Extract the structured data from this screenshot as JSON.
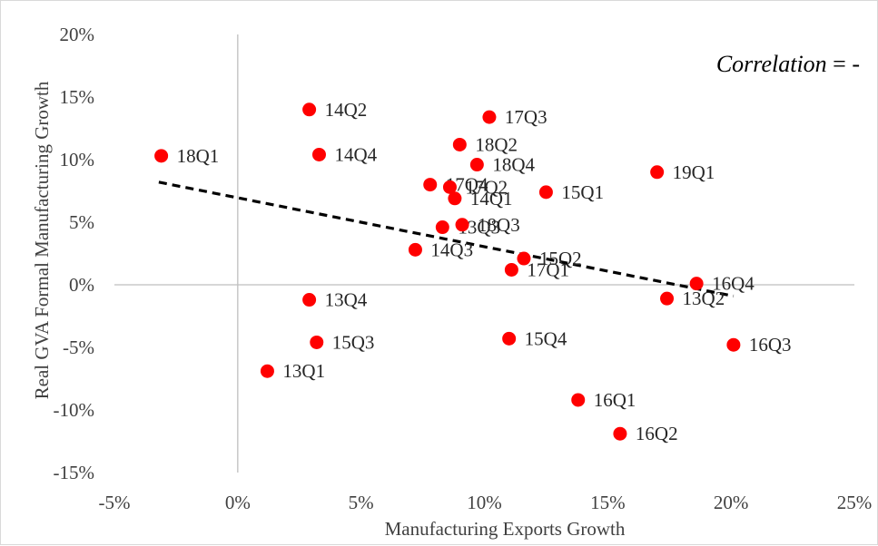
{
  "chart_data": {
    "type": "scatter",
    "xlabel": "Manufacturing Exports Growth",
    "ylabel": "Real GVA Formal Manufacturing Growth",
    "xlim": [
      -5,
      25
    ],
    "ylim": [
      -15,
      20
    ],
    "x_ticks": [
      -5,
      0,
      5,
      10,
      15,
      20,
      25
    ],
    "y_ticks": [
      -15,
      -10,
      -5,
      0,
      5,
      10,
      15,
      20
    ],
    "x_tick_labels": [
      "-5%",
      "0%",
      "5%",
      "10%",
      "15%",
      "20%",
      "25%"
    ],
    "y_tick_labels": [
      "-15%",
      "-10%",
      "-5%",
      "0%",
      "5%",
      "10%",
      "15%",
      "20%"
    ],
    "annotation": {
      "prefix": "Correlation",
      "suffix": " = -"
    },
    "grid": false,
    "marker_color": "#ff0000",
    "trendline": {
      "style": "dashed",
      "color": "#000000",
      "x": [
        -3.2,
        20.1
      ],
      "y": [
        8.2,
        -0.9
      ]
    },
    "points": [
      {
        "label": "18Q1",
        "x": -3.1,
        "y": 10.3
      },
      {
        "label": "14Q2",
        "x": 2.9,
        "y": 14.0
      },
      {
        "label": "14Q4",
        "x": 3.3,
        "y": 10.4
      },
      {
        "label": "17Q3",
        "x": 10.2,
        "y": 13.4
      },
      {
        "label": "18Q2",
        "x": 9.0,
        "y": 11.2
      },
      {
        "label": "18Q4",
        "x": 9.7,
        "y": 9.6
      },
      {
        "label": "17Q4",
        "x": 7.8,
        "y": 8.0
      },
      {
        "label": "17Q2",
        "x": 8.6,
        "y": 7.8
      },
      {
        "label": "14Q1",
        "x": 8.8,
        "y": 6.9
      },
      {
        "label": "15Q1",
        "x": 12.5,
        "y": 7.4
      },
      {
        "label": "19Q1",
        "x": 17.0,
        "y": 9.0
      },
      {
        "label": "13Q3",
        "x": 8.3,
        "y": 4.6
      },
      {
        "label": "18Q3",
        "x": 9.1,
        "y": 4.8
      },
      {
        "label": "15Q2",
        "x": 11.6,
        "y": 2.1
      },
      {
        "label": "14Q3",
        "x": 7.2,
        "y": 2.8
      },
      {
        "label": "17Q1",
        "x": 11.1,
        "y": 1.2
      },
      {
        "label": "16Q4",
        "x": 18.6,
        "y": 0.1
      },
      {
        "label": "13Q2",
        "x": 17.4,
        "y": -1.1
      },
      {
        "label": "13Q4",
        "x": 2.9,
        "y": -1.2
      },
      {
        "label": "15Q3",
        "x": 3.2,
        "y": -4.6
      },
      {
        "label": "15Q4",
        "x": 11.0,
        "y": -4.3
      },
      {
        "label": "16Q3",
        "x": 20.1,
        "y": -4.8
      },
      {
        "label": "13Q1",
        "x": 1.2,
        "y": -6.9
      },
      {
        "label": "16Q1",
        "x": 13.8,
        "y": -9.2
      },
      {
        "label": "16Q2",
        "x": 15.5,
        "y": -11.9
      }
    ]
  }
}
